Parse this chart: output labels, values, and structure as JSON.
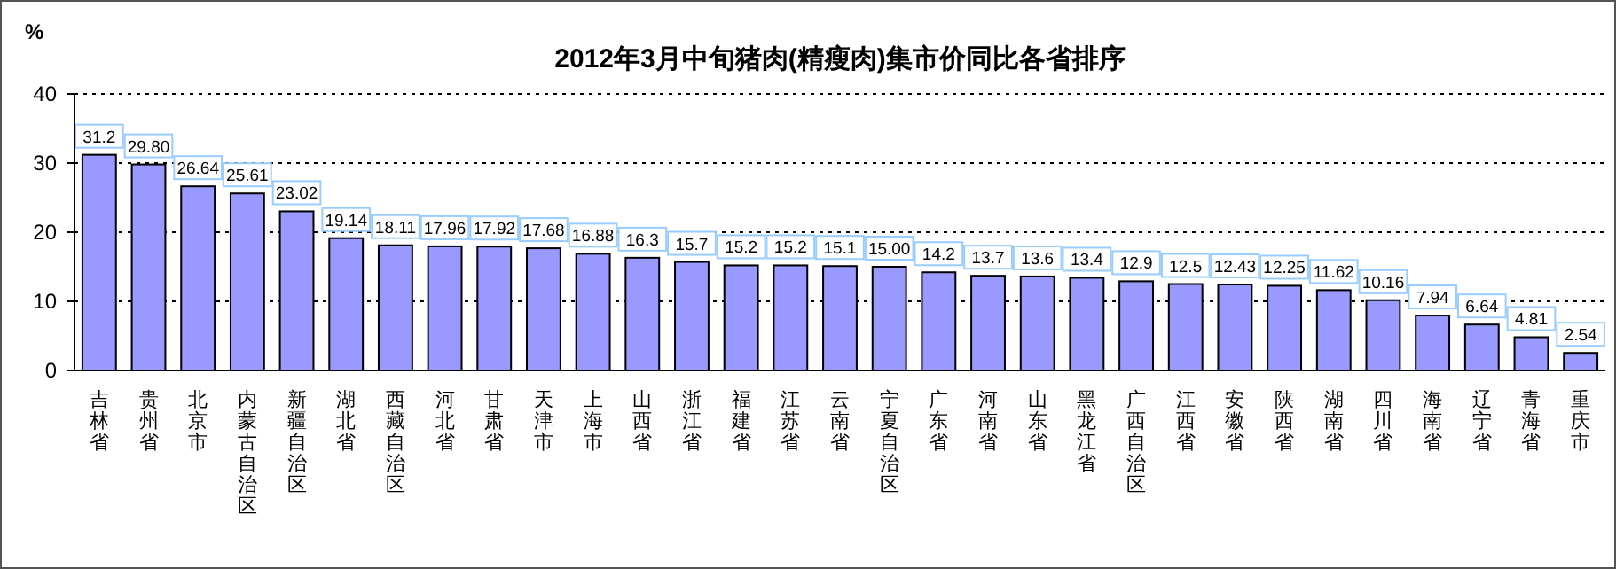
{
  "chart_data": {
    "type": "bar",
    "title": "2012年3月中旬猪肉(精瘦肉)集市价同比各省排序",
    "ylabel": "%",
    "categories": [
      "吉林省",
      "贵州省",
      "北京市",
      "内蒙古自治区",
      "新疆自治区",
      "湖北省",
      "西藏自治区",
      "河北省",
      "甘肃省",
      "天津市",
      "上海市",
      "山西省",
      "浙江省",
      "福建省",
      "江苏省",
      "云南省",
      "宁夏自治区",
      "广东省",
      "河南省",
      "山东省",
      "黑龙江省",
      "广西自治区",
      "江西省",
      "安徽省",
      "陕西省",
      "湖南省",
      "四川省",
      "海南省",
      "辽宁省",
      "青海省",
      "重庆市"
    ],
    "values": [
      31.2,
      29.8,
      26.64,
      25.61,
      23.02,
      19.14,
      18.11,
      17.96,
      17.92,
      17.68,
      16.88,
      16.3,
      15.7,
      15.2,
      15.2,
      15.1,
      15.0,
      14.2,
      13.7,
      13.6,
      13.4,
      12.9,
      12.5,
      12.43,
      12.25,
      11.62,
      10.16,
      7.94,
      6.64,
      4.81,
      2.54
    ],
    "value_labels": [
      "31.2",
      "29.80",
      "26.64",
      "25.61",
      "23.02",
      "19.14",
      "18.11",
      "17.96",
      "17.92",
      "17.68",
      "16.88",
      "16.3",
      "15.7",
      "15.2",
      "15.2",
      "15.1",
      "15.00",
      "14.2",
      "13.7",
      "13.6",
      "13.4",
      "12.9",
      "12.5",
      "12.43",
      "12.25",
      "11.62",
      "10.16",
      "7.94",
      "6.64",
      "4.81",
      "2.54"
    ],
    "color": "#9999ff",
    "ylim": [
      0,
      40
    ],
    "yticks": [
      0,
      10,
      20,
      30,
      40
    ],
    "grid": "y"
  }
}
